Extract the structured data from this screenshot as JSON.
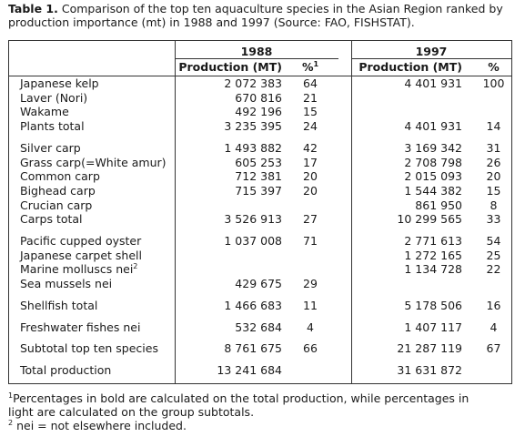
{
  "caption": {
    "label": "Table 1.",
    "text": "Comparison of the top ten aquaculture species in the Asian Region ranked by production importance (mt) in 1988 and 1997 (Source: FAO, FISHSTAT)."
  },
  "table": {
    "years": [
      "1988",
      "1997"
    ],
    "columns": [
      {
        "text": "Production (MT)"
      },
      {
        "text": "%",
        "note": "1"
      },
      {
        "text": "Production (MT)"
      },
      {
        "text": "%"
      }
    ],
    "groups": [
      {
        "rows": [
          {
            "name": "Japanese kelp",
            "cells": [
              "2 072 383",
              64,
              "4 401 931",
              100
            ]
          },
          {
            "name": "Laver (Nori)",
            "cells": [
              "670 816",
              21,
              null,
              null
            ]
          },
          {
            "name": "Wakame",
            "cells": [
              "492 196",
              15,
              null,
              null
            ]
          },
          {
            "name": "Plants total",
            "cells": [
              "3 235 395",
              24,
              "4 401 931",
              14
            ]
          }
        ]
      },
      {
        "rows": [
          {
            "name": "Silver carp",
            "cells": [
              "1 493 882",
              42,
              "3 169 342",
              31
            ]
          },
          {
            "name": "Grass carp(=White amur)",
            "cells": [
              "605 253",
              17,
              "2 708 798",
              26
            ]
          },
          {
            "name": "Common carp",
            "cells": [
              "712 381",
              20,
              "2 015 093",
              20
            ]
          },
          {
            "name": "Bighead carp",
            "cells": [
              "715 397",
              20,
              "1 544 382",
              15
            ]
          },
          {
            "name": "Crucian carp",
            "cells": [
              null,
              null,
              "861 950",
              8
            ]
          },
          {
            "name": "Carps total",
            "cells": [
              "3 526 913",
              27,
              "10 299 565",
              33
            ]
          }
        ]
      },
      {
        "rows": [
          {
            "name": "Pacific cupped oyster",
            "cells": [
              "1 037 008",
              71,
              "2 771 613",
              54
            ]
          },
          {
            "name": "Japanese carpet shell",
            "cells": [
              null,
              null,
              "1 272 165",
              25
            ]
          },
          {
            "name": "Marine molluscs nei",
            "note": "2",
            "cells": [
              null,
              null,
              "1 134 728",
              22
            ]
          },
          {
            "name": "Sea mussels nei",
            "cells": [
              "429 675",
              29,
              null,
              null
            ]
          }
        ]
      },
      {
        "rows": [
          {
            "name": "Shellfish total",
            "cells": [
              "1 466 683",
              11,
              "5 178 506",
              16
            ]
          }
        ]
      },
      {
        "rows": [
          {
            "name": "Freshwater fishes nei",
            "cells": [
              "532 684",
              4,
              "1 407 117",
              4
            ]
          }
        ]
      },
      {
        "rows": [
          {
            "name": "Subtotal top ten species",
            "cells": [
              "8 761 675",
              66,
              "21 287 119",
              67
            ]
          }
        ]
      },
      {
        "rows": [
          {
            "name": "Total production",
            "cells": [
              "13 241 684",
              null,
              "31 631 872",
              null
            ]
          }
        ]
      }
    ]
  },
  "footnotes": [
    {
      "mark": "1",
      "text": "Percentages in bold are calculated on the total production, while percentages in light are calculated on the group subtotals."
    },
    {
      "mark": "2",
      "text": "nei = not elsewhere included."
    }
  ]
}
